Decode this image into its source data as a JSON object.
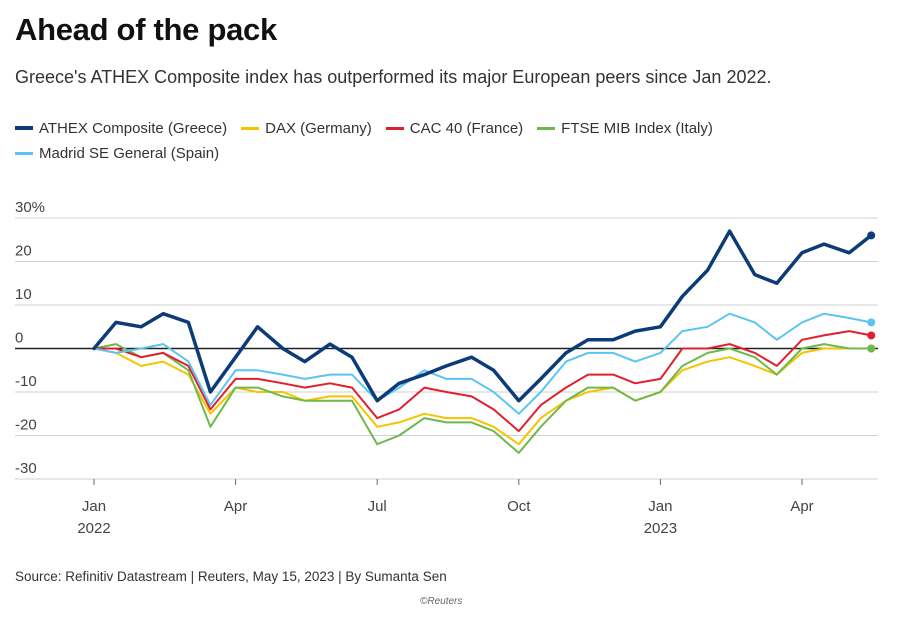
{
  "title": "Ahead of the pack",
  "subtitle": "Greece's ATHEX Composite index has outperformed its major European peers since Jan 2022.",
  "source": "Source: Refinitiv Datastream | Reuters, May 15, 2023 | By Sumanta Sen",
  "credit": "©Reuters",
  "chart_data": {
    "type": "line",
    "ylim": [
      -30,
      30
    ],
    "y_ticks": [
      {
        "value": 30,
        "label": "30%"
      },
      {
        "value": 20,
        "label": "20"
      },
      {
        "value": 10,
        "label": "10"
      },
      {
        "value": 0,
        "label": "0"
      },
      {
        "value": -10,
        "label": "-10"
      },
      {
        "value": -20,
        "label": "-20"
      },
      {
        "value": -30,
        "label": "-30"
      }
    ],
    "x_ticks": [
      {
        "x": "2022-01",
        "label": "Jan",
        "sublabel": "2022"
      },
      {
        "x": "2022-04",
        "label": "Apr",
        "sublabel": ""
      },
      {
        "x": "2022-07",
        "label": "Jul",
        "sublabel": ""
      },
      {
        "x": "2022-10",
        "label": "Oct",
        "sublabel": ""
      },
      {
        "x": "2023-01",
        "label": "Jan",
        "sublabel": "2023"
      },
      {
        "x": "2023-04",
        "label": "Apr",
        "sublabel": ""
      }
    ],
    "x": [
      "2022-01",
      "2022-01-15",
      "2022-02",
      "2022-02-15",
      "2022-03",
      "2022-03-15",
      "2022-04",
      "2022-04-15",
      "2022-05",
      "2022-05-15",
      "2022-06",
      "2022-06-15",
      "2022-07",
      "2022-07-15",
      "2022-08",
      "2022-08-15",
      "2022-09",
      "2022-09-15",
      "2022-10",
      "2022-10-15",
      "2022-11",
      "2022-11-15",
      "2022-12",
      "2022-12-15",
      "2023-01",
      "2023-01-15",
      "2023-02",
      "2023-02-15",
      "2023-03",
      "2023-03-15",
      "2023-04",
      "2023-04-15",
      "2023-05",
      "2023-05-15"
    ],
    "series": [
      {
        "name": "ATHEX Composite (Greece)",
        "color": "#0c3c78",
        "width": 3.5,
        "values": [
          0,
          6,
          5,
          8,
          6,
          -10,
          -2,
          5,
          0,
          -3,
          1,
          -2,
          -12,
          -8,
          -6,
          -4,
          -2,
          -5,
          -12,
          -7,
          -1,
          2,
          2,
          4,
          5,
          12,
          18,
          27,
          17,
          15,
          22,
          24,
          22,
          26
        ]
      },
      {
        "name": "DAX (Germany)",
        "color": "#f5c400",
        "width": 2,
        "values": [
          0,
          -1,
          -4,
          -3,
          -6,
          -15,
          -9,
          -10,
          -10,
          -12,
          -11,
          -11,
          -18,
          -17,
          -15,
          -16,
          -16,
          -18,
          -22,
          -16,
          -12,
          -10,
          -9,
          -12,
          -10,
          -5,
          -3,
          -2,
          -4,
          -6,
          -1,
          0,
          0,
          0
        ]
      },
      {
        "name": "CAC 40 (France)",
        "color": "#e0202e",
        "width": 2,
        "values": [
          0,
          0,
          -2,
          -1,
          -4,
          -14,
          -7,
          -7,
          -8,
          -9,
          -8,
          -9,
          -16,
          -14,
          -9,
          -10,
          -11,
          -14,
          -19,
          -13,
          -9,
          -6,
          -6,
          -8,
          -7,
          0,
          0,
          1,
          -1,
          -4,
          2,
          3,
          4,
          3
        ]
      },
      {
        "name": "FTSE MIB Index (Italy)",
        "color": "#6fb84a",
        "width": 2,
        "values": [
          0,
          1,
          -2,
          -1,
          -5,
          -18,
          -9,
          -9,
          -11,
          -12,
          -12,
          -12,
          -22,
          -20,
          -16,
          -17,
          -17,
          -19,
          -24,
          -18,
          -12,
          -9,
          -9,
          -12,
          -10,
          -4,
          -1,
          0,
          -2,
          -6,
          0,
          1,
          0,
          0
        ]
      },
      {
        "name": "Madrid SE General (Spain)",
        "color": "#5bc4f0",
        "width": 2,
        "values": [
          0,
          -1,
          0,
          1,
          -3,
          -13,
          -5,
          -5,
          -6,
          -7,
          -6,
          -6,
          -12,
          -9,
          -5,
          -7,
          -7,
          -10,
          -15,
          -10,
          -3,
          -1,
          -1,
          -3,
          -1,
          4,
          5,
          8,
          6,
          2,
          6,
          8,
          7,
          6
        ]
      }
    ]
  }
}
